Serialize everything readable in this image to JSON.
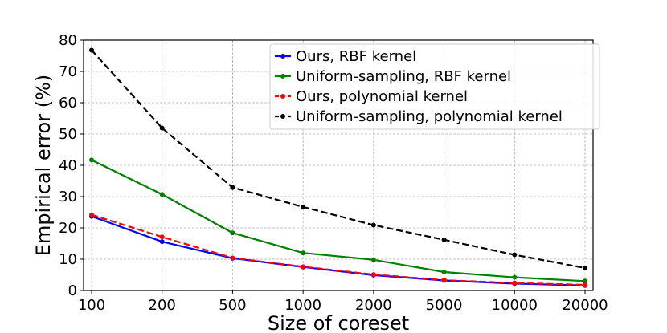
{
  "chart_data": {
    "type": "line",
    "title": "",
    "xlabel": "Size of coreset",
    "ylabel": "Empirical error (%)",
    "categories": [
      "100",
      "200",
      "500",
      "1000",
      "2000",
      "5000",
      "10000",
      "20000"
    ],
    "yticks": [
      "0",
      "10",
      "20",
      "30",
      "40",
      "50",
      "60",
      "70",
      "80"
    ],
    "ylim": [
      0,
      80
    ],
    "grid": true,
    "legend_position": "top-right",
    "series": [
      {
        "name": "Ours, RBF kernel",
        "color": "#0000ff",
        "dashed": false,
        "values": [
          23.7,
          15.6,
          10.3,
          7.5,
          4.9,
          3.2,
          2.2,
          1.6
        ]
      },
      {
        "name": "Uniform-sampling, RBF kernel",
        "color": "#008000",
        "dashed": false,
        "values": [
          41.7,
          30.7,
          18.4,
          12.0,
          9.8,
          5.9,
          4.2,
          3.0
        ]
      },
      {
        "name": "Ours, polynomial kernel",
        "color": "#ff0000",
        "dashed": true,
        "values": [
          24.2,
          17.1,
          10.4,
          7.6,
          5.1,
          3.3,
          2.4,
          1.8
        ]
      },
      {
        "name": "Uniform-sampling, polynomial kernel",
        "color": "#000000",
        "dashed": true,
        "values": [
          76.8,
          51.9,
          32.9,
          26.7,
          20.9,
          16.2,
          11.4,
          7.2
        ]
      }
    ]
  }
}
